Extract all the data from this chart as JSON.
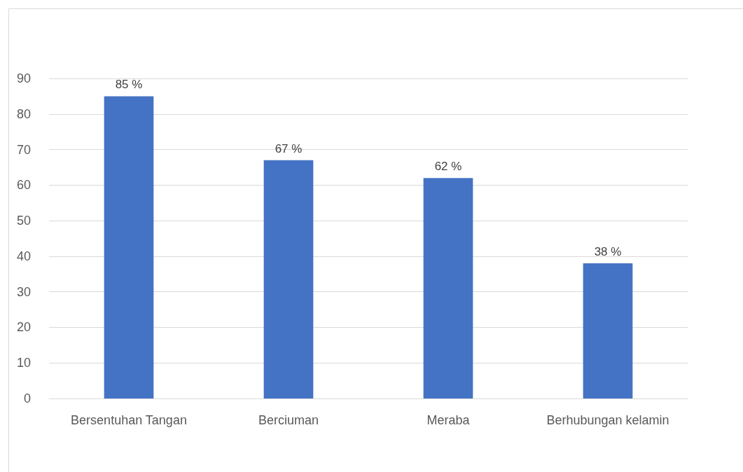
{
  "chart_data": {
    "type": "bar",
    "categories": [
      "Bersentuhan Tangan",
      "Berciuman",
      "Meraba",
      "Berhubungan kelamin"
    ],
    "values": [
      85,
      67,
      62,
      38
    ],
    "color": "#4472c4",
    "value_labels": [
      "85 %",
      "67 %",
      "62 %",
      "38 %"
    ],
    "ylim": [
      0,
      90
    ],
    "yticks": [
      0,
      10,
      20,
      30,
      40,
      50,
      60,
      70,
      80,
      90
    ],
    "grid": "y"
  }
}
